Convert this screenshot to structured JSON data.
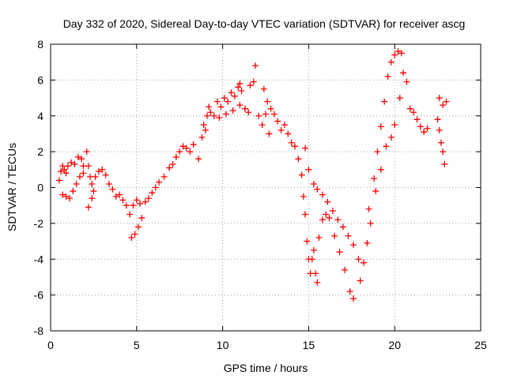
{
  "chart_data": {
    "type": "scatter",
    "title": "Day 332 of 2020, Sidereal Day-to-day VTEC variation (SDTVAR) for receiver ascg",
    "xlabel": "GPS time / hours",
    "ylabel": "SDTVAR / TECUs",
    "xlim": [
      0,
      25
    ],
    "ylim": [
      -8,
      8
    ],
    "x_ticks": [
      0,
      5,
      10,
      15,
      20,
      25
    ],
    "y_ticks": [
      -8,
      -6,
      -4,
      -2,
      0,
      2,
      4,
      6,
      8
    ],
    "grid": true,
    "marker": "+",
    "color": "#ff0000",
    "series": [
      {
        "points": [
          [
            0.5,
            0.4
          ],
          [
            0.6,
            0.9
          ],
          [
            0.7,
            1.2
          ],
          [
            0.8,
            1.0
          ],
          [
            0.9,
            0.8
          ],
          [
            1.0,
            1.2
          ],
          [
            1.2,
            1.4
          ],
          [
            1.4,
            1.3
          ],
          [
            1.6,
            1.7
          ],
          [
            1.8,
            1.6
          ],
          [
            1.9,
            1.2
          ],
          [
            0.7,
            -0.4
          ],
          [
            0.9,
            -0.5
          ],
          [
            1.1,
            -0.6
          ],
          [
            1.3,
            -0.2
          ],
          [
            1.5,
            0.2
          ],
          [
            1.7,
            0.6
          ],
          [
            1.9,
            0.8
          ],
          [
            2.1,
            2.0
          ],
          [
            2.2,
            1.2
          ],
          [
            2.3,
            0.6
          ],
          [
            2.4,
            0.2
          ],
          [
            2.5,
            -0.2
          ],
          [
            2.2,
            -1.1
          ],
          [
            2.4,
            -0.6
          ],
          [
            2.6,
            0.6
          ],
          [
            2.8,
            0.9
          ],
          [
            3.0,
            1.0
          ],
          [
            3.2,
            0.7
          ],
          [
            3.4,
            0.2
          ],
          [
            3.6,
            -0.1
          ],
          [
            3.8,
            -0.5
          ],
          [
            4.0,
            -0.4
          ],
          [
            4.2,
            -0.7
          ],
          [
            4.4,
            -1.0
          ],
          [
            4.6,
            -1.5
          ],
          [
            4.8,
            -1.0
          ],
          [
            5.0,
            -0.7
          ],
          [
            5.2,
            -0.9
          ],
          [
            4.7,
            -2.8
          ],
          [
            4.9,
            -2.6
          ],
          [
            5.1,
            -2.2
          ],
          [
            5.3,
            -1.7
          ],
          [
            5.5,
            -0.8
          ],
          [
            5.7,
            -0.6
          ],
          [
            5.9,
            -0.3
          ],
          [
            6.1,
            0.0
          ],
          [
            6.3,
            0.3
          ],
          [
            6.6,
            0.6
          ],
          [
            6.9,
            1.1
          ],
          [
            7.1,
            1.3
          ],
          [
            7.3,
            1.7
          ],
          [
            7.5,
            2.0
          ],
          [
            7.7,
            2.3
          ],
          [
            7.9,
            2.2
          ],
          [
            8.1,
            2.0
          ],
          [
            8.3,
            2.4
          ],
          [
            8.6,
            1.6
          ],
          [
            8.8,
            2.8
          ],
          [
            8.9,
            3.5
          ],
          [
            9.0,
            3.2
          ],
          [
            9.1,
            4.0
          ],
          [
            9.2,
            4.5
          ],
          [
            9.3,
            4.2
          ],
          [
            9.5,
            4.0
          ],
          [
            9.7,
            4.8
          ],
          [
            9.9,
            4.5
          ],
          [
            10.1,
            5.0
          ],
          [
            10.3,
            4.8
          ],
          [
            10.5,
            5.3
          ],
          [
            10.7,
            5.1
          ],
          [
            10.9,
            5.6
          ],
          [
            11.0,
            5.8
          ],
          [
            11.1,
            5.4
          ],
          [
            9.8,
            3.9
          ],
          [
            10.2,
            4.1
          ],
          [
            10.6,
            4.3
          ],
          [
            11.0,
            4.6
          ],
          [
            11.3,
            4.4
          ],
          [
            11.5,
            4.2
          ],
          [
            11.6,
            5.7
          ],
          [
            11.8,
            5.9
          ],
          [
            11.9,
            6.8
          ],
          [
            12.1,
            4.0
          ],
          [
            12.3,
            3.5
          ],
          [
            12.5,
            4.1
          ],
          [
            12.7,
            3.0
          ],
          [
            12.4,
            5.5
          ],
          [
            12.6,
            4.8
          ],
          [
            12.8,
            4.4
          ],
          [
            13.0,
            4.1
          ],
          [
            13.2,
            3.7
          ],
          [
            13.4,
            3.2
          ],
          [
            13.6,
            3.5
          ],
          [
            13.8,
            3.0
          ],
          [
            14.0,
            2.5
          ],
          [
            14.2,
            2.3
          ],
          [
            14.4,
            1.6
          ],
          [
            14.6,
            0.7
          ],
          [
            14.7,
            -0.5
          ],
          [
            14.8,
            -1.5
          ],
          [
            14.9,
            -3.0
          ],
          [
            15.0,
            -4.0
          ],
          [
            15.1,
            -4.8
          ],
          [
            15.2,
            -4.0
          ],
          [
            15.3,
            -3.5
          ],
          [
            15.4,
            -4.8
          ],
          [
            15.5,
            -5.3
          ],
          [
            15.6,
            -2.8
          ],
          [
            15.8,
            -1.8
          ],
          [
            16.0,
            -1.5
          ],
          [
            16.2,
            -1.7
          ],
          [
            16.5,
            -2.7
          ],
          [
            16.8,
            -3.6
          ],
          [
            17.1,
            -4.6
          ],
          [
            17.4,
            -5.8
          ],
          [
            17.6,
            -6.2
          ],
          [
            14.8,
            2.2
          ],
          [
            15.0,
            1.0
          ],
          [
            15.3,
            0.2
          ],
          [
            15.5,
            -0.1
          ],
          [
            15.8,
            -0.4
          ],
          [
            16.1,
            -0.8
          ],
          [
            16.4,
            -1.3
          ],
          [
            16.7,
            -1.8
          ],
          [
            17.0,
            -2.2
          ],
          [
            17.3,
            -2.7
          ],
          [
            17.6,
            -3.2
          ],
          [
            17.9,
            -4.0
          ],
          [
            18.0,
            -5.2
          ],
          [
            18.2,
            -4.2
          ],
          [
            18.4,
            -3.1
          ],
          [
            18.6,
            -2.0
          ],
          [
            18.9,
            -0.2
          ],
          [
            19.2,
            1.0
          ],
          [
            19.5,
            2.3
          ],
          [
            19.8,
            2.8
          ],
          [
            20.0,
            3.5
          ],
          [
            18.5,
            -1.2
          ],
          [
            18.8,
            0.5
          ],
          [
            19.0,
            2.0
          ],
          [
            19.2,
            3.4
          ],
          [
            19.4,
            4.8
          ],
          [
            19.6,
            6.2
          ],
          [
            19.8,
            7.0
          ],
          [
            20.0,
            7.4
          ],
          [
            20.2,
            7.6
          ],
          [
            20.4,
            7.5
          ],
          [
            20.3,
            5.0
          ],
          [
            20.5,
            6.4
          ],
          [
            20.7,
            5.9
          ],
          [
            20.9,
            4.4
          ],
          [
            21.1,
            4.2
          ],
          [
            21.3,
            3.8
          ],
          [
            21.5,
            3.4
          ],
          [
            21.7,
            3.1
          ],
          [
            21.9,
            3.3
          ],
          [
            22.5,
            3.8
          ],
          [
            22.6,
            3.2
          ],
          [
            22.7,
            2.5
          ],
          [
            22.8,
            2.0
          ],
          [
            22.9,
            1.3
          ],
          [
            22.6,
            5.0
          ],
          [
            22.8,
            4.6
          ],
          [
            23.0,
            4.8
          ]
        ]
      }
    ]
  }
}
